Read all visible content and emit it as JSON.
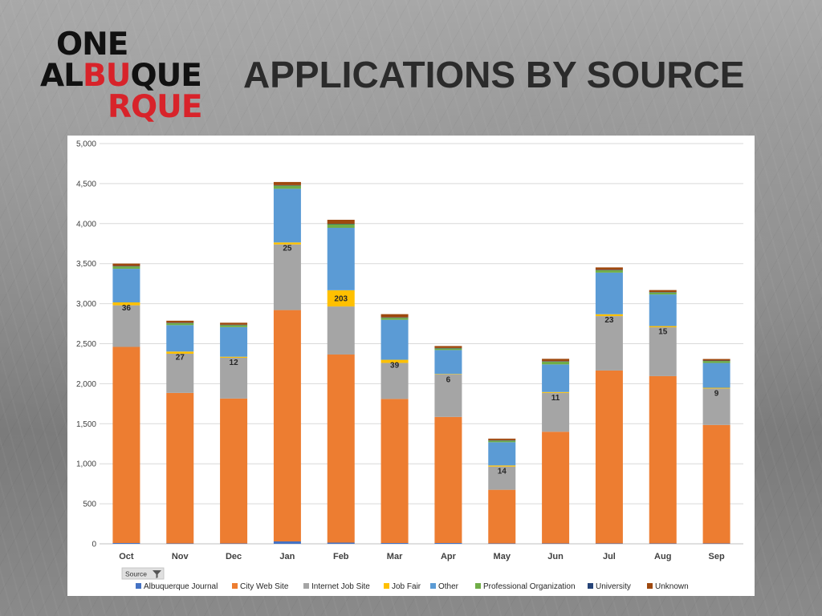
{
  "logo": {
    "line1": "ONE",
    "line2_part1": "AL",
    "line2_part2": "BU",
    "line2_part3": "QUE",
    "line3": "RQUE",
    "brand_red": "#d8232a"
  },
  "title": "APPLICATIONS BY SOURCE",
  "filter_button": {
    "label": "Source",
    "icon": "filter-icon"
  },
  "chart_data": {
    "type": "bar",
    "stacked": true,
    "categories": [
      "Oct",
      "Nov",
      "Dec",
      "Jan",
      "Feb",
      "Mar",
      "Apr",
      "May",
      "Jun",
      "Jul",
      "Aug",
      "Sep"
    ],
    "ylim": [
      0,
      5000
    ],
    "yticks": [
      0,
      500,
      1000,
      1500,
      2000,
      2500,
      3000,
      3500,
      4000,
      4500,
      5000
    ],
    "ytick_labels": [
      "0",
      "500",
      "1,000",
      "1,500",
      "2,000",
      "2,500",
      "3,000",
      "3,500",
      "4,000",
      "4,500",
      "5,000"
    ],
    "grid": true,
    "legend_position": "bottom",
    "series": [
      {
        "name": "Albuquerque Journal",
        "color": "#4472c4",
        "values": [
          10,
          5,
          5,
          30,
          15,
          10,
          10,
          5,
          5,
          5,
          5,
          5
        ]
      },
      {
        "name": "City Web Site",
        "color": "#ed7d31",
        "values": [
          2450,
          1880,
          1810,
          2890,
          2350,
          1800,
          1575,
          670,
          1395,
          2160,
          2090,
          1480
        ]
      },
      {
        "name": "Internet Job Site",
        "color": "#a5a5a5",
        "values": [
          520,
          490,
          510,
          820,
          600,
          450,
          530,
          290,
          485,
          680,
          610,
          455
        ]
      },
      {
        "name": "Job Fair",
        "color": "#ffc000",
        "values": [
          36,
          27,
          12,
          25,
          203,
          39,
          6,
          14,
          11,
          23,
          15,
          9
        ]
      },
      {
        "name": "Other",
        "color": "#5b9bd5",
        "values": [
          420,
          330,
          370,
          670,
          780,
          500,
          300,
          290,
          345,
          520,
          395,
          310
        ]
      },
      {
        "name": "Professional Organization",
        "color": "#70ad47",
        "values": [
          30,
          25,
          25,
          40,
          45,
          25,
          20,
          20,
          35,
          30,
          25,
          25
        ]
      },
      {
        "name": "University",
        "color": "#264478",
        "values": [
          5,
          5,
          5,
          5,
          5,
          5,
          5,
          5,
          5,
          5,
          5,
          5
        ]
      },
      {
        "name": "Unknown",
        "color": "#9e480e",
        "values": [
          30,
          25,
          25,
          40,
          50,
          40,
          25,
          20,
          30,
          30,
          25,
          20
        ]
      }
    ],
    "data_labels": {
      "series": "Job Fair",
      "values": [
        "36",
        "27",
        "12",
        "25",
        "203",
        "39",
        "6",
        "14",
        "11",
        "23",
        "15",
        "9"
      ]
    }
  }
}
